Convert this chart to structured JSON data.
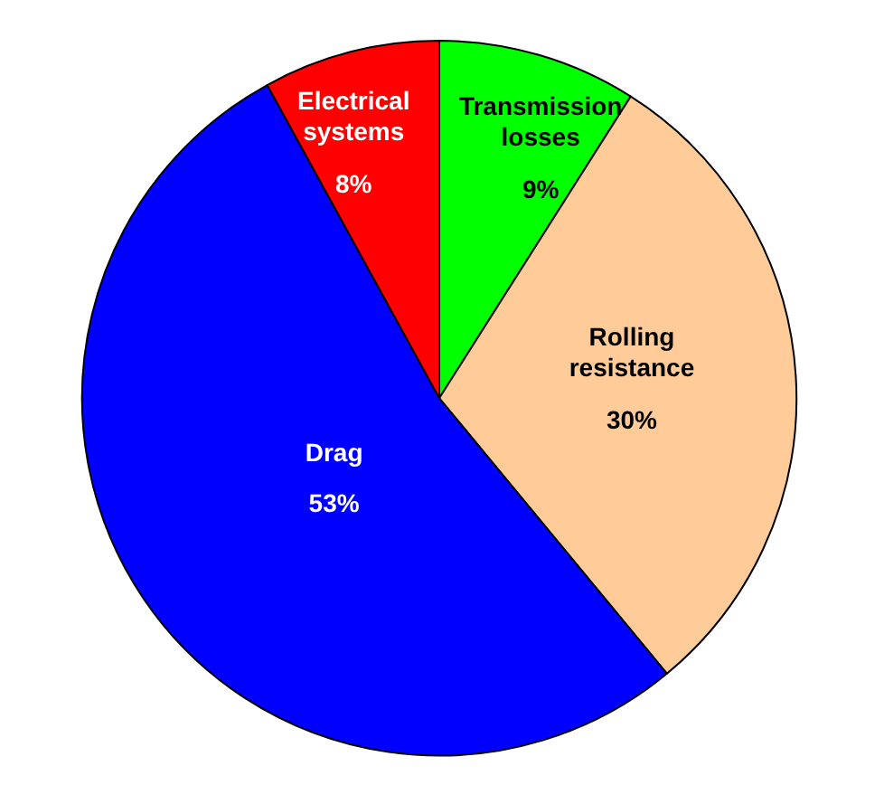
{
  "chart_data": {
    "type": "pie",
    "categories": [
      "Transmission losses",
      "Rolling resistance",
      "Drag",
      "Electrical systems"
    ],
    "values": [
      9,
      30,
      53,
      8
    ],
    "value_labels": [
      "9%",
      "30%",
      "53%",
      "8%"
    ],
    "colors": [
      "#00ff00",
      "#ffcc99",
      "#0000ff",
      "#ff0000"
    ],
    "legend": false
  }
}
